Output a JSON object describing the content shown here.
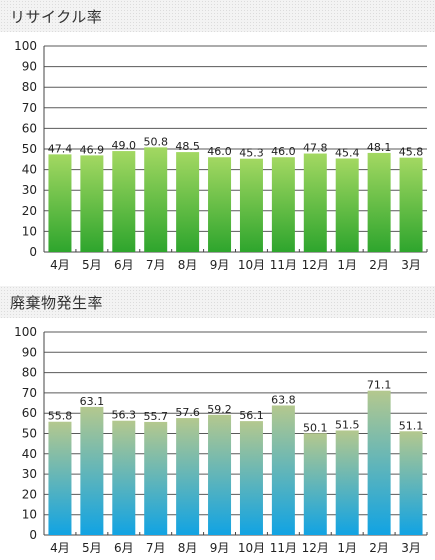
{
  "colors": {
    "recycle_top": "#a3d862",
    "recycle_bottom": "#2ea52d",
    "waste_top": "#b4c88e",
    "waste_bottom": "#11a3e3",
    "gridline": "#5a5a5a",
    "axis": "#444444"
  },
  "chart_data": [
    {
      "type": "bar",
      "title": "リサイクル率",
      "categories": [
        "4月",
        "5月",
        "6月",
        "7月",
        "8月",
        "9月",
        "10月",
        "11月",
        "12月",
        "1月",
        "2月",
        "3月"
      ],
      "values": [
        47.4,
        46.9,
        49.0,
        50.8,
        48.5,
        46.0,
        45.3,
        46.0,
        47.8,
        45.4,
        48.1,
        45.8
      ],
      "value_labels": [
        "47.4",
        "46.9",
        "49.0",
        "50.8",
        "48.5",
        "46.0",
        "45.3",
        "46.0",
        "47.8",
        "45.4",
        "48.1",
        "45.8"
      ],
      "yticks": [
        "0",
        "10",
        "20",
        "30",
        "40",
        "50",
        "60",
        "70",
        "80",
        "90",
        "100"
      ],
      "ylim": [
        0,
        100
      ],
      "grid": true
    },
    {
      "type": "bar",
      "title": "廃棄物発生率",
      "categories": [
        "4月",
        "5月",
        "6月",
        "7月",
        "8月",
        "9月",
        "10月",
        "11月",
        "12月",
        "1月",
        "2月",
        "3月"
      ],
      "values": [
        55.8,
        63.1,
        56.3,
        55.7,
        57.6,
        59.2,
        56.1,
        63.8,
        50.1,
        51.5,
        71.1,
        51.1
      ],
      "value_labels": [
        "55.8",
        "63.1",
        "56.3",
        "55.7",
        "57.6",
        "59.2",
        "56.1",
        "63.8",
        "50.1",
        "51.5",
        "71.1",
        "51.1"
      ],
      "yticks": [
        "0",
        "10",
        "20",
        "30",
        "40",
        "50",
        "60",
        "70",
        "80",
        "90",
        "100"
      ],
      "ylim": [
        0,
        100
      ],
      "grid": true
    }
  ]
}
